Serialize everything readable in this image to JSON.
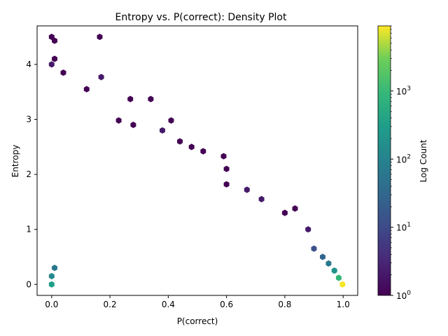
{
  "chart_data": {
    "type": "hexbin",
    "title": "Entropy vs. P(correct): Density Plot",
    "xlabel": "P(correct)",
    "ylabel": "Entropy",
    "xlim": [
      -0.05,
      1.05
    ],
    "ylim": [
      -0.2,
      4.7
    ],
    "xticks": [
      "0.0",
      "0.2",
      "0.4",
      "0.6",
      "0.8",
      "1.0"
    ],
    "yticks": [
      "0",
      "1",
      "2",
      "3",
      "4"
    ],
    "grid": false,
    "colormap": "viridis",
    "colorbar": {
      "label": "Log Count",
      "scale": "log",
      "range": [
        1,
        9000
      ],
      "ticks": [
        {
          "value": 1,
          "base": "10",
          "exp": "0"
        },
        {
          "value": 10,
          "base": "10",
          "exp": "1"
        },
        {
          "value": 100,
          "base": "10",
          "exp": "2"
        },
        {
          "value": 1000,
          "base": "10",
          "exp": "3"
        }
      ]
    },
    "points": [
      {
        "x": 0.0,
        "y": 4.5,
        "count": 1
      },
      {
        "x": 0.01,
        "y": 4.43,
        "count": 1
      },
      {
        "x": 0.165,
        "y": 4.5,
        "count": 1
      },
      {
        "x": 0.01,
        "y": 4.1,
        "count": 1
      },
      {
        "x": 0.0,
        "y": 4.0,
        "count": 2
      },
      {
        "x": 0.04,
        "y": 3.85,
        "count": 1
      },
      {
        "x": 0.17,
        "y": 3.77,
        "count": 2
      },
      {
        "x": 0.12,
        "y": 3.55,
        "count": 1
      },
      {
        "x": 0.27,
        "y": 3.37,
        "count": 1
      },
      {
        "x": 0.34,
        "y": 3.37,
        "count": 1
      },
      {
        "x": 0.41,
        "y": 2.98,
        "count": 1
      },
      {
        "x": 0.23,
        "y": 2.98,
        "count": 1
      },
      {
        "x": 0.28,
        "y": 2.9,
        "count": 1
      },
      {
        "x": 0.38,
        "y": 2.8,
        "count": 2
      },
      {
        "x": 0.44,
        "y": 2.6,
        "count": 1
      },
      {
        "x": 0.48,
        "y": 2.5,
        "count": 1
      },
      {
        "x": 0.52,
        "y": 2.42,
        "count": 1
      },
      {
        "x": 0.59,
        "y": 2.33,
        "count": 1
      },
      {
        "x": 0.6,
        "y": 2.1,
        "count": 1
      },
      {
        "x": 0.6,
        "y": 1.82,
        "count": 1
      },
      {
        "x": 0.67,
        "y": 1.72,
        "count": 2
      },
      {
        "x": 0.72,
        "y": 1.55,
        "count": 2
      },
      {
        "x": 0.8,
        "y": 1.3,
        "count": 1
      },
      {
        "x": 0.835,
        "y": 1.38,
        "count": 1
      },
      {
        "x": 0.88,
        "y": 1.0,
        "count": 2
      },
      {
        "x": 0.9,
        "y": 0.65,
        "count": 12
      },
      {
        "x": 0.93,
        "y": 0.5,
        "count": 28
      },
      {
        "x": 0.95,
        "y": 0.38,
        "count": 60
      },
      {
        "x": 0.97,
        "y": 0.25,
        "count": 200
      },
      {
        "x": 0.985,
        "y": 0.12,
        "count": 900
      },
      {
        "x": 0.998,
        "y": 0.0,
        "count": 8500
      },
      {
        "x": 0.0,
        "y": 0.0,
        "count": 300
      },
      {
        "x": 0.0,
        "y": 0.15,
        "count": 120
      },
      {
        "x": 0.01,
        "y": 0.3,
        "count": 60
      }
    ]
  }
}
